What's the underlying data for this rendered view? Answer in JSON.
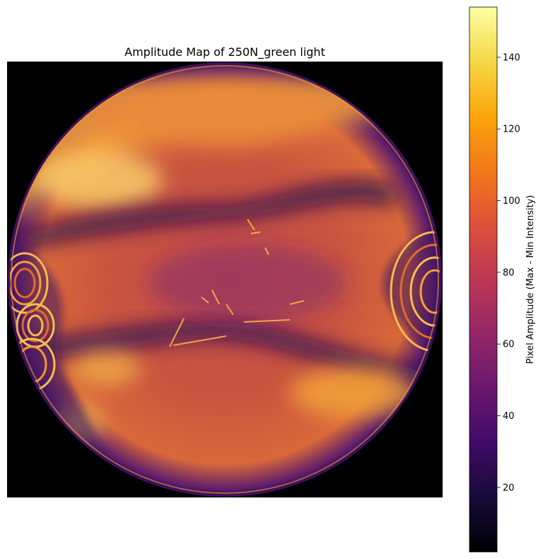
{
  "chart_data": {
    "type": "heatmap",
    "title": "Amplitude Map of 250N_green light",
    "colormap": "inferno",
    "axes_visible": false,
    "colorbar": {
      "label": "Pixel Amplitude (Max - Min Intensity)",
      "range": [
        2,
        154
      ],
      "ticks": [
        20,
        40,
        60,
        80,
        100,
        120,
        140
      ],
      "tick_labels": [
        "20",
        "40",
        "60",
        "80",
        "100",
        "120",
        "140"
      ],
      "placement": "right"
    },
    "image": {
      "shape": "circular aperture on black background",
      "background_value": 0
    }
  }
}
